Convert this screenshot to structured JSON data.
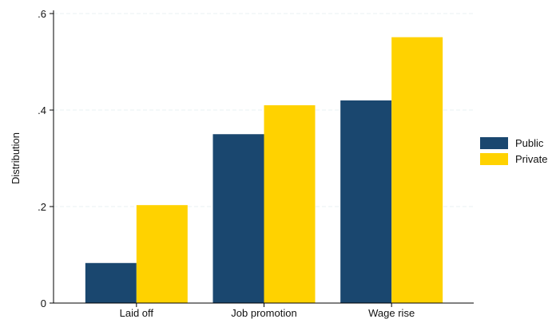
{
  "chart_data": {
    "type": "bar",
    "title": "",
    "xlabel": "",
    "ylabel": "Distribution",
    "categories": [
      "Laid off",
      "Job promotion",
      "Wage rise"
    ],
    "series": [
      {
        "name": "Public",
        "color": "#1a476f",
        "values": [
          0.083,
          0.35,
          0.42
        ]
      },
      {
        "name": "Private",
        "color": "#ffd200",
        "values": [
          0.203,
          0.41,
          0.551
        ]
      }
    ],
    "ylim": [
      0,
      0.6
    ],
    "yticks": [
      0,
      0.2,
      0.4,
      0.6
    ],
    "ytick_labels": [
      "0",
      ".2",
      ".4",
      ".6"
    ],
    "grid": true,
    "legend_position": "right"
  }
}
